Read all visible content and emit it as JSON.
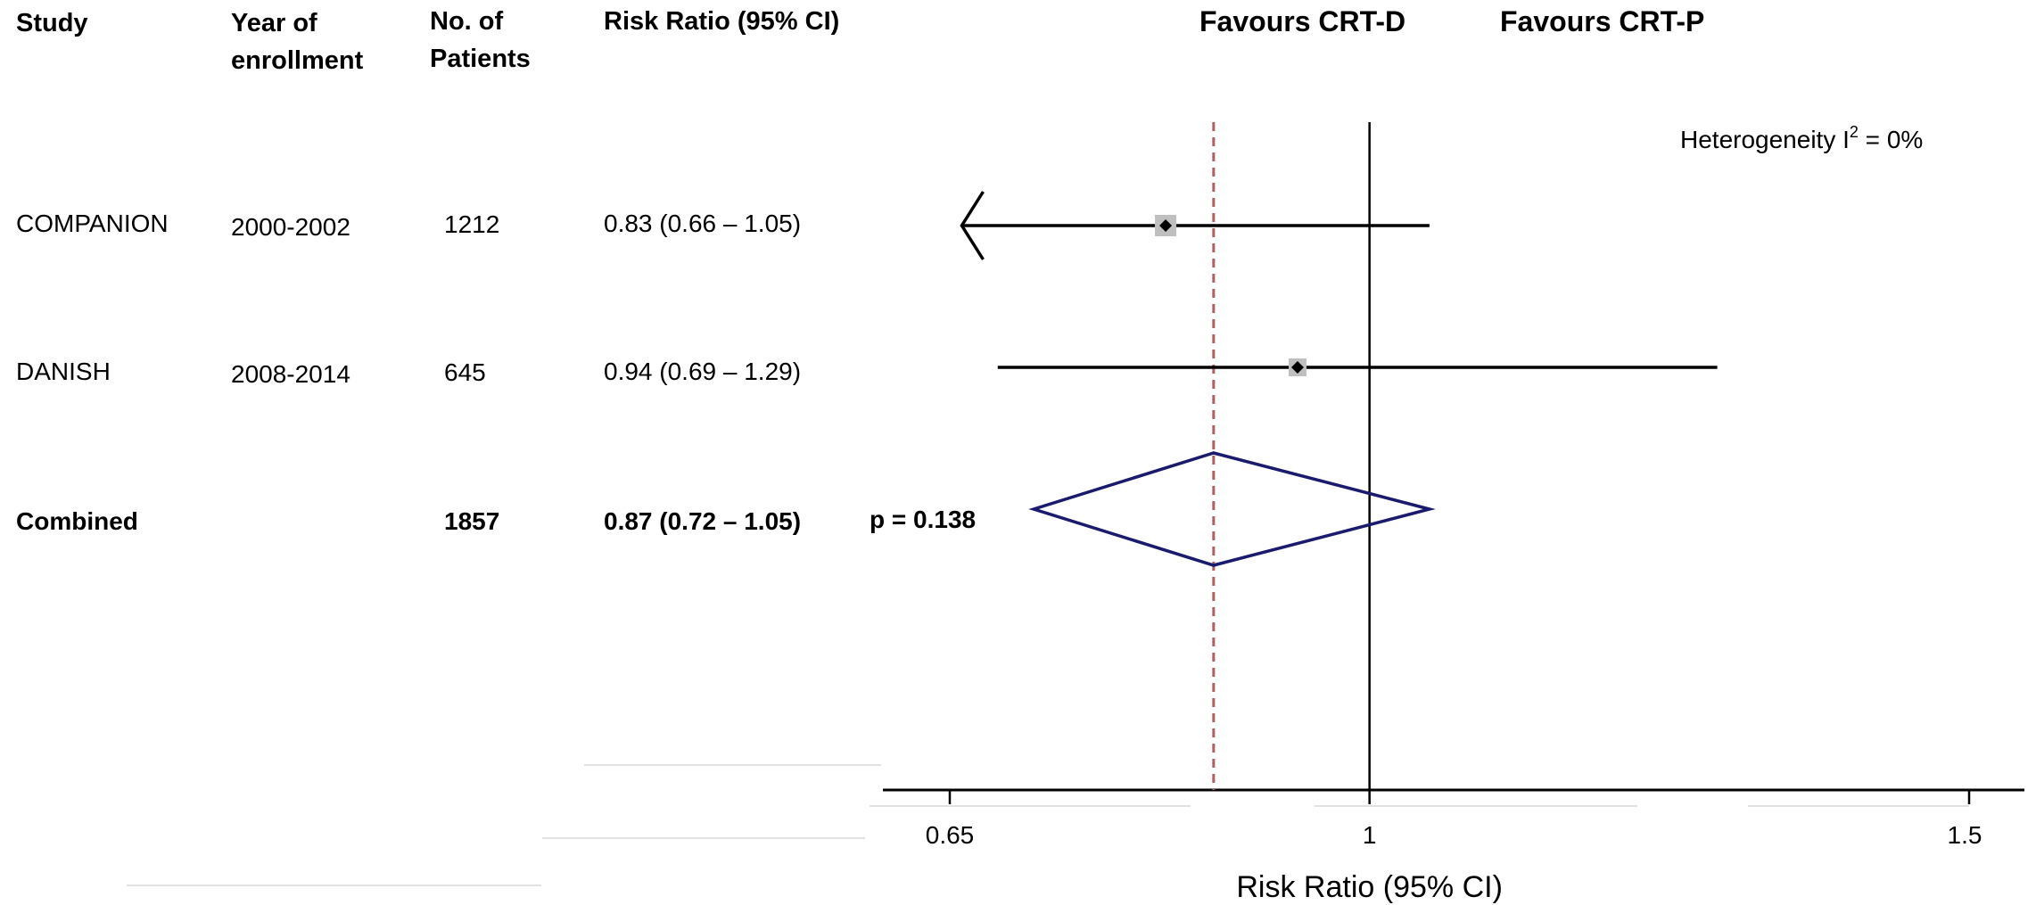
{
  "headers": {
    "study": "Study",
    "year_line1": "Year of",
    "year_line2": "enrollment",
    "patients_line1": "No. of",
    "patients_line2": "Patients",
    "rr": "Risk Ratio (95% CI)"
  },
  "rows": [
    {
      "study": "COMPANION",
      "year": "2000-2002",
      "patients": "1212",
      "rr_text": "0.83 (0.66 – 1.05)"
    },
    {
      "study": "DANISH",
      "year": "2008-2014",
      "patients": "645",
      "rr_text": "0.94 (0.69 – 1.29)"
    }
  ],
  "combined": {
    "study": "Combined",
    "patients": "1857",
    "rr_text": "0.87 (0.72 – 1.05)",
    "p_value": "p = 0.138"
  },
  "favours_left": "Favours CRT-D",
  "favours_right": "Favours CRT-P",
  "heterogeneity": {
    "text": "Heterogeneity I",
    "sup": "2",
    "suffix": " = 0%"
  },
  "chart_data": {
    "type": "forest",
    "xlabel": "Risk Ratio (95% CI)",
    "xticks": [
      0.65,
      1,
      1.5
    ],
    "xlim": [
      0.65,
      1.5
    ],
    "null_line": 1,
    "pooled_line": 0.87,
    "studies": [
      {
        "name": "COMPANION",
        "rr": 0.83,
        "lower": 0.66,
        "upper": 1.05,
        "lower_truncated": true
      },
      {
        "name": "DANISH",
        "rr": 0.94,
        "lower": 0.69,
        "upper": 1.29,
        "lower_truncated": false
      }
    ],
    "pooled": {
      "rr": 0.87,
      "lower": 0.72,
      "upper": 1.05
    },
    "colors": {
      "diamond": "#1a1a6e",
      "pooled_line": "#b06060",
      "marker_box": "#bfbfbf",
      "lines": "#000000"
    }
  }
}
